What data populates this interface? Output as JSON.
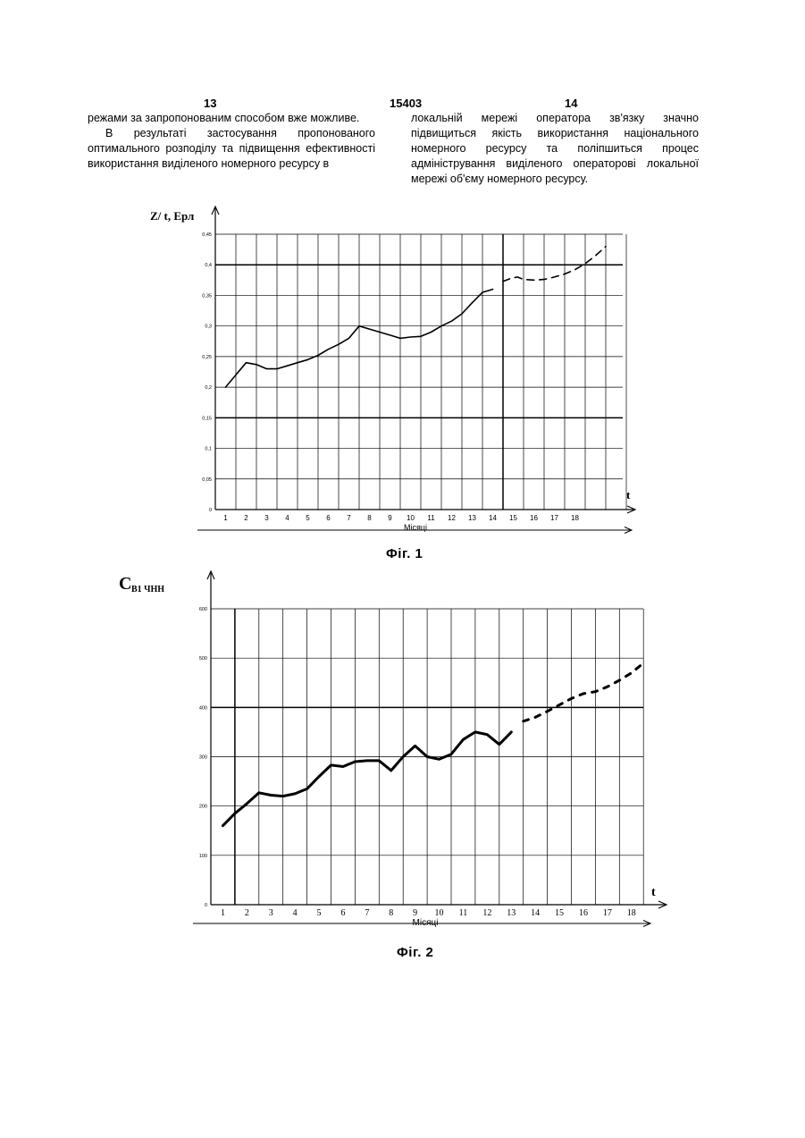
{
  "page": {
    "left_number": "13",
    "center_number": "15403",
    "right_number": "14"
  },
  "text": {
    "left_column": [
      "режами за запропонованим способом вже можливе.",
      "В результаті застосування пропонованого оптимального розподілу та підвищення ефективності використання виділеного номерного ресурсу в"
    ],
    "right_column": [
      "локальній мережі оператора зв'язку значно підвищиться якість використання національного номерного ресурсу та поліпшиться процес адміністрування виділеного операторові локальної мережі об'єму номерного ресурсу."
    ]
  },
  "chart_data": [
    {
      "type": "line",
      "figure_label": "Фіг. 1",
      "ylabel": "Z/  t, Ерл",
      "xlabel": "Місяці",
      "x_axis_symbol": "t",
      "ylim": [
        0,
        0.45
      ],
      "yticks": [
        "0",
        "0,05",
        "0,1",
        "0,15",
        "0,2",
        "0,25",
        "0,3",
        "0,35",
        "0,4",
        "0,45"
      ],
      "xticks": [
        "1",
        "2",
        "3",
        "4",
        "5",
        "6",
        "7",
        "8",
        "9",
        "10",
        "11",
        "12",
        "13",
        "14",
        "15",
        "16",
        "17",
        "18"
      ],
      "grid": true,
      "series": [
        {
          "style": "solid",
          "x": [
            0.5,
            1,
            1.5,
            2,
            2.5,
            3,
            3.5,
            4,
            4.5,
            5,
            5.5,
            6,
            6.5,
            7,
            7.5,
            8,
            8.5,
            9,
            9.5,
            10,
            10.5,
            11,
            11.5,
            12,
            12.5,
            13,
            13.5
          ],
          "y": [
            0.2,
            0.22,
            0.24,
            0.237,
            0.23,
            0.23,
            0.235,
            0.24,
            0.245,
            0.252,
            0.262,
            0.27,
            0.28,
            0.3,
            0.295,
            0.29,
            0.285,
            0.28,
            0.282,
            0.283,
            0.29,
            0.3,
            0.308,
            0.32,
            0.338,
            0.355,
            0.36
          ]
        },
        {
          "style": "dashed",
          "x": [
            14,
            14.4,
            14.7,
            15,
            15.5,
            16,
            16.5,
            17,
            17.5,
            18,
            18.5,
            19
          ],
          "y": [
            0.373,
            0.378,
            0.38,
            0.376,
            0.375,
            0.376,
            0.38,
            0.385,
            0.392,
            0.402,
            0.415,
            0.43
          ]
        }
      ]
    },
    {
      "type": "line",
      "figure_label": "Фіг. 2",
      "ylabel_main": "C",
      "ylabel_sub": "B1 ЧНН",
      "xlabel": "Місяці",
      "x_axis_symbol": "t",
      "ylim": [
        0,
        600
      ],
      "yticks": [
        "0",
        "100",
        "200",
        "300",
        "400",
        "500",
        "600"
      ],
      "xticks": [
        "1",
        "2",
        "3",
        "4",
        "5",
        "6",
        "7",
        "8",
        "9",
        "10",
        "11",
        "12",
        "13",
        "14",
        "15",
        "16",
        "17",
        "18"
      ],
      "grid": true,
      "series": [
        {
          "style": "solid",
          "x": [
            0.5,
            1,
            1.5,
            2,
            2.5,
            3,
            3.5,
            4,
            4.5,
            5,
            5.5,
            6,
            6.5,
            7,
            7.5,
            8,
            8.5,
            9,
            9.5,
            10,
            10.5,
            11,
            11.5,
            12,
            12.5
          ],
          "y": [
            160,
            185,
            205,
            227,
            222,
            220,
            225,
            235,
            260,
            283,
            280,
            290,
            292,
            292,
            272,
            300,
            322,
            300,
            295,
            305,
            335,
            350,
            345,
            325,
            350
          ]
        },
        {
          "style": "dashed",
          "x": [
            13,
            13.5,
            14,
            14.5,
            15,
            15.5,
            16,
            16.5,
            17,
            17.5,
            18
          ],
          "y": [
            372,
            380,
            392,
            405,
            418,
            428,
            432,
            442,
            455,
            470,
            490
          ]
        }
      ]
    }
  ]
}
